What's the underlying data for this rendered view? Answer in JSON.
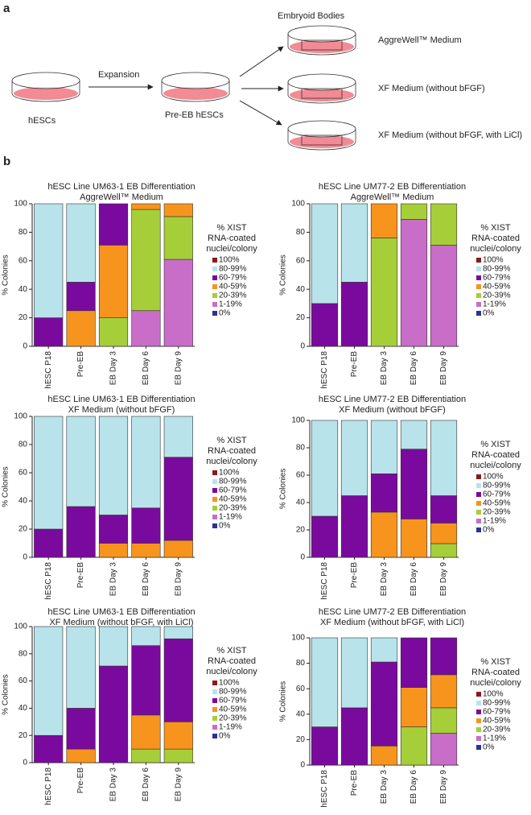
{
  "diagram": {
    "panel_a": "a",
    "panel_b": "b",
    "dish1": "hESCs",
    "arrow1": "Expansion",
    "dish2": "Pre-EB hESCs",
    "group": "Embryoid Bodies",
    "dish3": "AggreWell™ Medium",
    "dish4": "XF Medium (without bFGF)",
    "dish5": "XF Medium (without bFGF, with LiCl)"
  },
  "chart_data": [
    {
      "type": "bar",
      "stacked": true,
      "title": "hESC Line UM63-1 EB Differentiation",
      "subtitle": "AggreWell™ Medium",
      "y_label": "% Colonies",
      "legend_title": [
        "% XIST",
        "RNA-coated",
        "nuclei/colony"
      ],
      "categories": [
        "hESC P18",
        "Pre-EB",
        "EB Day 3",
        "EB Day 6",
        "EB Day 9"
      ],
      "ylim": [
        0,
        100
      ],
      "yticks": [
        0,
        20,
        40,
        60,
        80,
        100
      ],
      "series": [
        {
          "name": "100%",
          "color": "#8b1a1a",
          "values": [
            0,
            0,
            0,
            0,
            0
          ]
        },
        {
          "name": "80-99%",
          "color": "#b9e3ea",
          "values": [
            80,
            55,
            0,
            0,
            0
          ]
        },
        {
          "name": "60-79%",
          "color": "#7a0a9e",
          "values": [
            20,
            20,
            29,
            0,
            0
          ]
        },
        {
          "name": "40-59%",
          "color": "#f7941d",
          "values": [
            0,
            25,
            51,
            4,
            9
          ]
        },
        {
          "name": "20-39%",
          "color": "#a6ce39",
          "values": [
            0,
            0,
            20,
            71,
            30
          ]
        },
        {
          "name": "1-19%",
          "color": "#c86dc8",
          "values": [
            0,
            0,
            0,
            25,
            61
          ]
        },
        {
          "name": "0%",
          "color": "#2e3192",
          "values": [
            0,
            0,
            0,
            0,
            0
          ]
        }
      ]
    },
    {
      "type": "bar",
      "stacked": true,
      "title": "hESC Line UM77-2 EB Differentiation",
      "subtitle": "AggreWell™ Medium",
      "y_label": "% Colonies",
      "legend_title": [
        "% XIST",
        "RNA-coated",
        "nuclei/colony"
      ],
      "categories": [
        "hESC P18",
        "Pre-EB",
        "EB Day 3",
        "EB Day 6",
        "EB Day 9"
      ],
      "ylim": [
        0,
        100
      ],
      "yticks": [
        0,
        20,
        40,
        60,
        80,
        100
      ],
      "series": [
        {
          "name": "100%",
          "color": "#8b1a1a",
          "values": [
            0,
            0,
            0,
            0,
            0
          ]
        },
        {
          "name": "80-99%",
          "color": "#b9e3ea",
          "values": [
            70,
            55,
            0,
            0,
            0
          ]
        },
        {
          "name": "60-79%",
          "color": "#7a0a9e",
          "values": [
            30,
            45,
            0,
            0,
            0
          ]
        },
        {
          "name": "40-59%",
          "color": "#f7941d",
          "values": [
            0,
            0,
            24,
            0,
            0
          ]
        },
        {
          "name": "20-39%",
          "color": "#a6ce39",
          "values": [
            0,
            0,
            76,
            11,
            29
          ]
        },
        {
          "name": "1-19%",
          "color": "#c86dc8",
          "values": [
            0,
            0,
            0,
            89,
            71
          ]
        },
        {
          "name": "0%",
          "color": "#2e3192",
          "values": [
            0,
            0,
            0,
            0,
            0
          ]
        }
      ]
    },
    {
      "type": "bar",
      "stacked": true,
      "title": "hESC Line UM63-1 EB Differentiation",
      "subtitle": "XF Medium  (without bFGF)",
      "y_label": "% Colonies",
      "legend_title": [
        "% XIST",
        "RNA-coated",
        "nuclei/colony"
      ],
      "categories": [
        "hESC P18",
        "Pre-EB",
        "EB Day 3",
        "EB Day 6",
        "EB Day 9"
      ],
      "ylim": [
        0,
        100
      ],
      "yticks": [
        0,
        20,
        40,
        60,
        80,
        100
      ],
      "series": [
        {
          "name": "100%",
          "color": "#8b1a1a",
          "values": [
            0,
            0,
            0,
            0,
            0
          ]
        },
        {
          "name": "80-99%",
          "color": "#b9e3ea",
          "values": [
            80,
            64,
            70,
            65,
            29
          ]
        },
        {
          "name": "60-79%",
          "color": "#7a0a9e",
          "values": [
            20,
            36,
            20,
            25,
            59
          ]
        },
        {
          "name": "40-59%",
          "color": "#f7941d",
          "values": [
            0,
            0,
            10,
            10,
            12
          ]
        },
        {
          "name": "20-39%",
          "color": "#a6ce39",
          "values": [
            0,
            0,
            0,
            0,
            0
          ]
        },
        {
          "name": "1-19%",
          "color": "#c86dc8",
          "values": [
            0,
            0,
            0,
            0,
            0
          ]
        },
        {
          "name": "0%",
          "color": "#2e3192",
          "values": [
            0,
            0,
            0,
            0,
            0
          ]
        }
      ]
    },
    {
      "type": "bar",
      "stacked": true,
      "title": "hESC Line UM77-2 EB Differentiation",
      "subtitle": "XF Medium (without bFGF)",
      "y_label": "% Colonies",
      "legend_title": [
        "% XIST",
        "RNA-coated",
        "nuclei/colony"
      ],
      "categories": [
        "hESC P18",
        "Pre-EB",
        "EB Day 3",
        "EB Day 6",
        "EB Day 9"
      ],
      "ylim": [
        0,
        100
      ],
      "yticks": [
        0,
        20,
        40,
        60,
        80,
        100
      ],
      "series": [
        {
          "name": "100%",
          "color": "#8b1a1a",
          "values": [
            0,
            0,
            0,
            0,
            0
          ]
        },
        {
          "name": "80-99%",
          "color": "#b9e3ea",
          "values": [
            70,
            55,
            39,
            21,
            55
          ]
        },
        {
          "name": "60-79%",
          "color": "#7a0a9e",
          "values": [
            30,
            45,
            28,
            51,
            20
          ]
        },
        {
          "name": "40-59%",
          "color": "#f7941d",
          "values": [
            0,
            0,
            33,
            28,
            15
          ]
        },
        {
          "name": "20-39%",
          "color": "#a6ce39",
          "values": [
            0,
            0,
            0,
            0,
            10
          ]
        },
        {
          "name": "1-19%",
          "color": "#c86dc8",
          "values": [
            0,
            0,
            0,
            0,
            0
          ]
        },
        {
          "name": "0%",
          "color": "#2e3192",
          "values": [
            0,
            0,
            0,
            0,
            0
          ]
        }
      ]
    },
    {
      "type": "bar",
      "stacked": true,
      "title": "hESC Line UM63-1 EB Differentiation",
      "subtitle": "XF Medium (without bFGF, with LiCl)",
      "y_label": "% Colonies",
      "legend_title": [
        "% XIST",
        "RNA-coated",
        "nuclei/colony"
      ],
      "categories": [
        "hESC P18",
        "Pre-EB",
        "EB Day 3",
        "EB Day 6",
        "EB Day 9"
      ],
      "ylim": [
        0,
        100
      ],
      "yticks": [
        0,
        20,
        40,
        60,
        80,
        100
      ],
      "series": [
        {
          "name": "100%",
          "color": "#8b1a1a",
          "values": [
            0,
            0,
            0,
            0,
            0
          ]
        },
        {
          "name": "80-99%",
          "color": "#b9e3ea",
          "values": [
            80,
            60,
            29,
            14,
            9
          ]
        },
        {
          "name": "60-79%",
          "color": "#7a0a9e",
          "values": [
            20,
            30,
            71,
            51,
            61
          ]
        },
        {
          "name": "40-59%",
          "color": "#f7941d",
          "values": [
            0,
            10,
            0,
            25,
            20
          ]
        },
        {
          "name": "20-39%",
          "color": "#a6ce39",
          "values": [
            0,
            0,
            0,
            10,
            10
          ]
        },
        {
          "name": "1-19%",
          "color": "#c86dc8",
          "values": [
            0,
            0,
            0,
            0,
            0
          ]
        },
        {
          "name": "0%",
          "color": "#2e3192",
          "values": [
            0,
            0,
            0,
            0,
            0
          ]
        }
      ]
    },
    {
      "type": "bar",
      "stacked": true,
      "title": "hESC Line UM77-2 EB Differentiation",
      "subtitle": "XF Medium (without bFGF, with LiCl)",
      "y_label": "% Colonies",
      "legend_title": [
        "% XIST",
        "RNA-coated",
        "nuclei/colony"
      ],
      "categories": [
        "hESC P18",
        "Pre-EB",
        "EB Day 3",
        "EB Day 6",
        "EB Day 9"
      ],
      "ylim": [
        0,
        100
      ],
      "yticks": [
        0,
        20,
        40,
        60,
        80,
        100
      ],
      "series": [
        {
          "name": "100%",
          "color": "#8b1a1a",
          "values": [
            0,
            0,
            0,
            0,
            0
          ]
        },
        {
          "name": "80-99%",
          "color": "#b9e3ea",
          "values": [
            70,
            55,
            19,
            0,
            0
          ]
        },
        {
          "name": "60-79%",
          "color": "#7a0a9e",
          "values": [
            30,
            45,
            66,
            39,
            29
          ]
        },
        {
          "name": "40-59%",
          "color": "#f7941d",
          "values": [
            0,
            0,
            15,
            31,
            26
          ]
        },
        {
          "name": "20-39%",
          "color": "#a6ce39",
          "values": [
            0,
            0,
            0,
            30,
            20
          ]
        },
        {
          "name": "1-19%",
          "color": "#c86dc8",
          "values": [
            0,
            0,
            0,
            0,
            25
          ]
        },
        {
          "name": "0%",
          "color": "#2e3192",
          "values": [
            0,
            0,
            0,
            0,
            0
          ]
        }
      ]
    }
  ]
}
